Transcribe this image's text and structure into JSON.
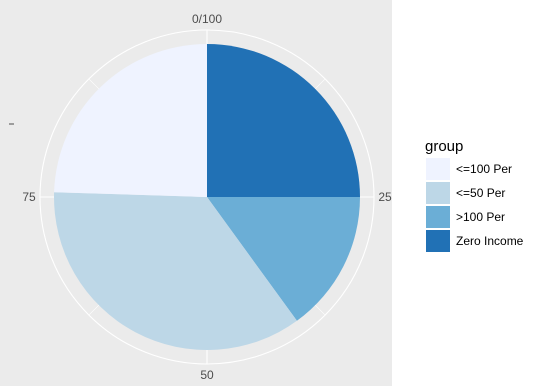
{
  "chart_data": {
    "type": "pie",
    "theta_ticks": [
      "0/100",
      "25",
      "50",
      "75"
    ],
    "theta_range": [
      0,
      100
    ],
    "slices": [
      {
        "label": "Zero Income",
        "start": 0,
        "end": 25,
        "value": 25,
        "color": "#2171b5"
      },
      {
        "label": ">100 Per",
        "start": 25,
        "end": 40,
        "value": 15,
        "color": "#6baed6"
      },
      {
        "label": "<=50 Per",
        "start": 40,
        "end": 75.5,
        "value": 35.5,
        "color": "#bdd7e7"
      },
      {
        "label": "<=100 Per",
        "start": 75.5,
        "end": 100,
        "value": 24.5,
        "color": "#eff3ff"
      }
    ],
    "legend": {
      "title": "group",
      "placement": "right",
      "entries": [
        {
          "label": "<=100 Per",
          "color": "#eff3ff"
        },
        {
          "label": "<=50 Per",
          "color": "#bdd7e7"
        },
        {
          "label": ">100 Per",
          "color": "#6baed6"
        },
        {
          "label": "Zero Income",
          "color": "#2171b5"
        }
      ]
    },
    "panel_background": "#ebebeb",
    "grid": true
  }
}
